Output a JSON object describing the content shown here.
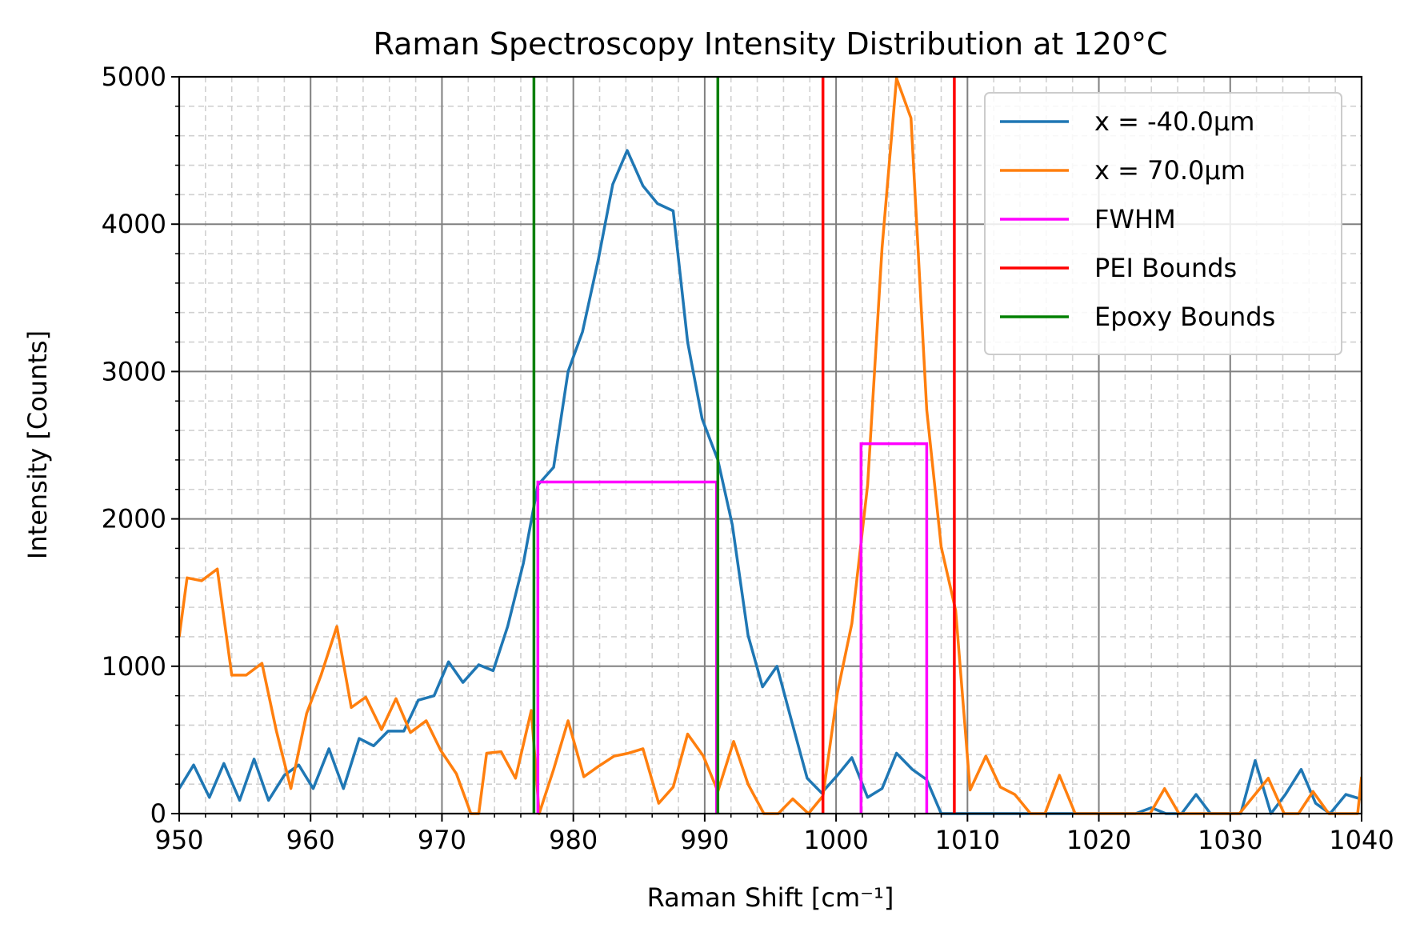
{
  "chart_data": {
    "type": "line",
    "title": "Raman Spectroscopy Intensity Distribution at 120°C",
    "xlabel": "Raman Shift [cm⁻¹]",
    "ylabel": "Intensity [Counts]",
    "xlim": [
      950,
      1040
    ],
    "ylim": [
      0,
      5000
    ],
    "x_ticks": [
      "950",
      "960",
      "970",
      "980",
      "990",
      "1000",
      "1010",
      "1020",
      "1030",
      "1040"
    ],
    "y_ticks": [
      "0",
      "1000",
      "2000",
      "3000",
      "4000",
      "5000"
    ],
    "grid": "major solid gray, minor dashed light gray",
    "legend_position": "top-right",
    "series": [
      {
        "name": "x = -40.0μm",
        "color": "#1f77b4",
        "x": [
          950,
          951.1,
          952.3,
          953.4,
          954.6,
          955.7,
          956.8,
          958,
          959.1,
          960.2,
          961.4,
          962.5,
          963.7,
          964.8,
          965.9,
          967.1,
          968.2,
          969.4,
          970.5,
          971.6,
          972.8,
          973.9,
          975,
          976.2,
          977.3,
          978.5,
          979.6,
          980.7,
          981.9,
          983,
          984.1,
          985.3,
          986.4,
          987.6,
          988.7,
          989.8,
          991,
          992.1,
          993.3,
          994.4,
          995.5,
          996.7,
          997.8,
          998.9,
          1000.1,
          1001.2,
          1002.4,
          1003.5,
          1004.6,
          1005.8,
          1006.9,
          1008,
          1009.2,
          1010.3,
          1011.5,
          1012.6,
          1013.7,
          1014.9,
          1016,
          1017.2,
          1018.3,
          1019.4,
          1020.6,
          1021.7,
          1022.8,
          1024,
          1025.1,
          1026.3,
          1027.4,
          1028.5,
          1029.7,
          1030.8,
          1031.9,
          1033.1,
          1034.2,
          1035.4,
          1036.5,
          1037.6,
          1038.8,
          1039.9,
          1040
        ],
        "y": [
          170,
          330,
          110,
          340,
          90,
          370,
          90,
          260,
          330,
          170,
          440,
          170,
          510,
          460,
          560,
          560,
          770,
          800,
          1030,
          890,
          1010,
          970,
          1270,
          1700,
          2230,
          2350,
          3000,
          3270,
          3760,
          4270,
          4500,
          4260,
          4140,
          4090,
          3200,
          2680,
          2400,
          1960,
          1210,
          860,
          1000,
          600,
          240,
          140,
          260,
          380,
          110,
          170,
          410,
          300,
          230,
          0,
          0,
          0,
          0,
          0,
          0,
          0,
          0,
          0,
          0,
          0,
          0,
          0,
          0,
          40,
          0,
          0,
          130,
          0,
          0,
          0,
          360,
          0,
          130,
          300,
          70,
          0,
          130,
          100,
          130
        ]
      },
      {
        "name": "x = 70.0μm",
        "color": "#ff7f0e",
        "x": [
          950,
          950.6,
          951.7,
          952.9,
          954,
          955.1,
          956.3,
          957.4,
          958.5,
          959.7,
          960.8,
          962,
          963.1,
          964.2,
          965.4,
          966.5,
          967.6,
          968.8,
          969.9,
          971.1,
          972.2,
          972.8,
          973.4,
          974.5,
          975.6,
          976.8,
          977.4,
          978.5,
          979.6,
          980.8,
          981.9,
          983.1,
          984.2,
          985.3,
          986.5,
          987.6,
          988.7,
          989.9,
          991,
          992.2,
          993.3,
          994.5,
          995.6,
          996.7,
          997.9,
          999,
          1000.1,
          1001.2,
          1002.4,
          1003.5,
          1004.6,
          1005.7,
          1006.9,
          1008,
          1009.1,
          1010.2,
          1011.4,
          1012.5,
          1013.6,
          1014.8,
          1015.9,
          1017,
          1018.2,
          1019.3,
          1020.4,
          1021.6,
          1022.7,
          1023.9,
          1025,
          1026.1,
          1027.3,
          1028.4,
          1029.5,
          1030.7,
          1031.8,
          1032.9,
          1034.1,
          1035.2,
          1036.3,
          1037.5,
          1038.6,
          1039.7,
          1040
        ],
        "y": [
          1200,
          1600,
          1580,
          1660,
          940,
          940,
          1020,
          560,
          170,
          680,
          940,
          1270,
          720,
          790,
          570,
          780,
          550,
          630,
          430,
          270,
          0,
          0,
          410,
          420,
          240,
          700,
          0,
          300,
          630,
          250,
          320,
          390,
          410,
          440,
          70,
          180,
          540,
          390,
          150,
          490,
          200,
          0,
          0,
          100,
          0,
          120,
          820,
          1290,
          2230,
          3840,
          4990,
          4720,
          2740,
          1810,
          1380,
          160,
          390,
          180,
          130,
          0,
          0,
          260,
          0,
          0,
          0,
          0,
          0,
          0,
          170,
          0,
          0,
          0,
          0,
          0,
          120,
          240,
          0,
          0,
          150,
          0,
          0,
          0,
          250
        ]
      },
      {
        "name": "FWHM",
        "color": "#ff00ff",
        "segments": [
          {
            "x": [
              977.3,
              977.3,
              990.9,
              990.9
            ],
            "y": [
              0,
              2250,
              2250,
              0
            ]
          },
          {
            "x": [
              1001.9,
              1001.9,
              1006.9,
              1006.9
            ],
            "y": [
              0,
              2510,
              2510,
              0
            ]
          }
        ]
      },
      {
        "name": "PEI Bounds",
        "color": "#ff0000",
        "vlines": [
          999,
          1009
        ]
      },
      {
        "name": "Epoxy Bounds",
        "color": "#008000",
        "vlines": [
          977,
          991
        ]
      }
    ]
  }
}
